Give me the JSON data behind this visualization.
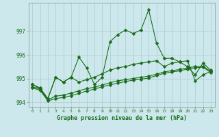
{
  "xlabel": "Graphe pression niveau de la mer (hPa)",
  "background_color": "#cce8ec",
  "grid_color": "#aacccc",
  "line_color": "#1a6b1a",
  "x_values": [
    0,
    1,
    2,
    3,
    4,
    5,
    6,
    7,
    8,
    9,
    10,
    11,
    12,
    13,
    14,
    15,
    16,
    17,
    18,
    19,
    20,
    21,
    22,
    23
  ],
  "series1": [
    994.75,
    994.55,
    994.15,
    995.05,
    994.85,
    995.05,
    995.9,
    995.45,
    994.75,
    995.05,
    996.55,
    996.85,
    997.05,
    996.9,
    997.05,
    997.9,
    996.5,
    995.85,
    995.85,
    995.7,
    995.5,
    995.15,
    995.65,
    995.35
  ],
  "series2": [
    994.75,
    994.6,
    994.15,
    995.05,
    994.85,
    995.05,
    994.85,
    994.95,
    995.05,
    995.2,
    995.35,
    995.45,
    995.5,
    995.6,
    995.65,
    995.7,
    995.75,
    995.5,
    995.65,
    995.7,
    995.75,
    994.9,
    995.15,
    995.3
  ],
  "series3": [
    994.65,
    994.55,
    994.1,
    994.25,
    994.3,
    994.38,
    994.48,
    994.57,
    994.63,
    994.72,
    994.82,
    994.9,
    994.95,
    995.0,
    995.05,
    995.1,
    995.18,
    995.28,
    995.33,
    995.38,
    995.45,
    995.5,
    995.52,
    995.3
  ],
  "series4": [
    994.6,
    994.5,
    994.05,
    994.15,
    994.2,
    994.27,
    994.37,
    994.47,
    994.55,
    994.65,
    994.73,
    994.8,
    994.87,
    994.93,
    994.97,
    995.02,
    995.12,
    995.22,
    995.28,
    995.32,
    995.4,
    995.45,
    995.48,
    995.25
  ],
  "ylim": [
    993.8,
    998.2
  ],
  "yticks": [
    994,
    995,
    996,
    997
  ],
  "xticks": [
    0,
    1,
    2,
    3,
    4,
    5,
    6,
    7,
    8,
    9,
    10,
    11,
    12,
    13,
    14,
    15,
    16,
    17,
    18,
    19,
    20,
    21,
    22,
    23
  ],
  "marker_size": 2.5,
  "linewidth": 0.8
}
